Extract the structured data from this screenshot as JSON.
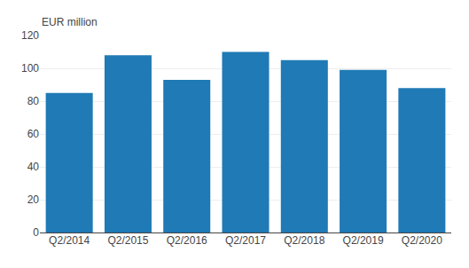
{
  "chart_data": {
    "type": "bar",
    "categories": [
      "Q2/2014",
      "Q2/2015",
      "Q2/2016",
      "Q2/2017",
      "Q2/2018",
      "Q2/2019",
      "Q2/2020"
    ],
    "values": [
      85,
      108,
      93,
      110,
      105,
      99,
      88
    ],
    "color": "#1f7ab5",
    "ylabel": "EUR million",
    "ylim": [
      0,
      120
    ],
    "yticks": [
      0,
      20,
      40,
      60,
      80,
      100,
      120
    ],
    "grid": true
  }
}
